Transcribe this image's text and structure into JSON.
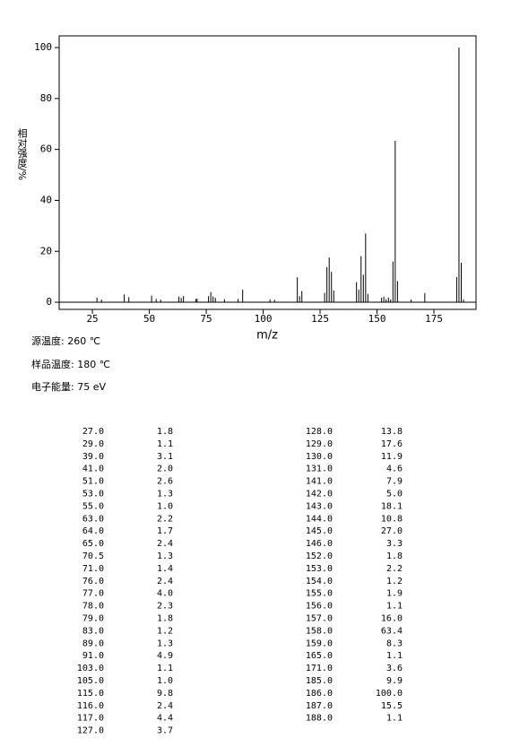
{
  "chart_data": {
    "type": "bar",
    "y_label": "相对强度/%",
    "x_label": "m/z",
    "annotations": [
      "源温度: 260 ℃",
      "样品温度: 180 ℃",
      "电子能量: 75 eV"
    ],
    "x": [
      27,
      29,
      39,
      41,
      51,
      53,
      55,
      63,
      64,
      65,
      70.5,
      71,
      76,
      77,
      78,
      79,
      83,
      89,
      91,
      103,
      105,
      115,
      116,
      117,
      127,
      128,
      129,
      130,
      131,
      141,
      142,
      143,
      144,
      145,
      146,
      152,
      153,
      154,
      155,
      156,
      157,
      158,
      159,
      165,
      171,
      185,
      186,
      187,
      188
    ],
    "x_labels": [
      "27.0",
      "29.0",
      "39.0",
      "41.0",
      "51.0",
      "53.0",
      "55.0",
      "63.0",
      "64.0",
      "65.0",
      "70.5",
      "71.0",
      "76.0",
      "77.0",
      "78.0",
      "79.0",
      "83.0",
      "89.0",
      "91.0",
      "103.0",
      "105.0",
      "115.0",
      "116.0",
      "117.0",
      "127.0",
      "128.0",
      "129.0",
      "130.0",
      "131.0",
      "141.0",
      "142.0",
      "143.0",
      "144.0",
      "145.0",
      "146.0",
      "152.0",
      "153.0",
      "154.0",
      "155.0",
      "156.0",
      "157.0",
      "158.0",
      "159.0",
      "165.0",
      "171.0",
      "185.0",
      "186.0",
      "187.0",
      "188.0"
    ],
    "values": [
      1.8,
      1.1,
      3.1,
      2.0,
      2.6,
      1.3,
      1.0,
      2.2,
      1.7,
      2.4,
      1.3,
      1.4,
      2.4,
      4.0,
      2.3,
      1.8,
      1.2,
      1.3,
      4.9,
      1.1,
      1.0,
      9.8,
      2.4,
      4.4,
      3.7,
      13.8,
      17.6,
      11.9,
      4.6,
      7.9,
      5.0,
      18.1,
      10.8,
      27.0,
      3.3,
      1.8,
      2.2,
      1.2,
      1.9,
      1.1,
      16.0,
      63.4,
      8.3,
      1.1,
      3.6,
      9.9,
      100.0,
      15.5,
      1.1
    ],
    "value_labels": [
      "1.8",
      "1.1",
      "3.1",
      "2.0",
      "2.6",
      "1.3",
      "1.0",
      "2.2",
      "1.7",
      "2.4",
      "1.3",
      "1.4",
      "2.4",
      "4.0",
      "2.3",
      "1.8",
      "1.2",
      "1.3",
      "4.9",
      "1.1",
      "1.0",
      "9.8",
      "2.4",
      "4.4",
      "3.7",
      "13.8",
      "17.6",
      "11.9",
      "4.6",
      "7.9",
      "5.0",
      "18.1",
      "10.8",
      "27.0",
      "3.3",
      "1.8",
      "2.2",
      "1.2",
      "1.9",
      "1.1",
      "16.0",
      "63.4",
      "8.3",
      "1.1",
      "3.6",
      "9.9",
      "100.0",
      "15.5",
      "1.1"
    ],
    "color": "#000000",
    "xlim": [
      10.4,
      193.5
    ],
    "xticks": [
      25,
      50,
      75,
      100,
      125,
      150,
      175
    ],
    "ylim": [
      -2.8,
      104.6
    ],
    "yticks": [
      0,
      20,
      40,
      60,
      80,
      100
    ]
  }
}
